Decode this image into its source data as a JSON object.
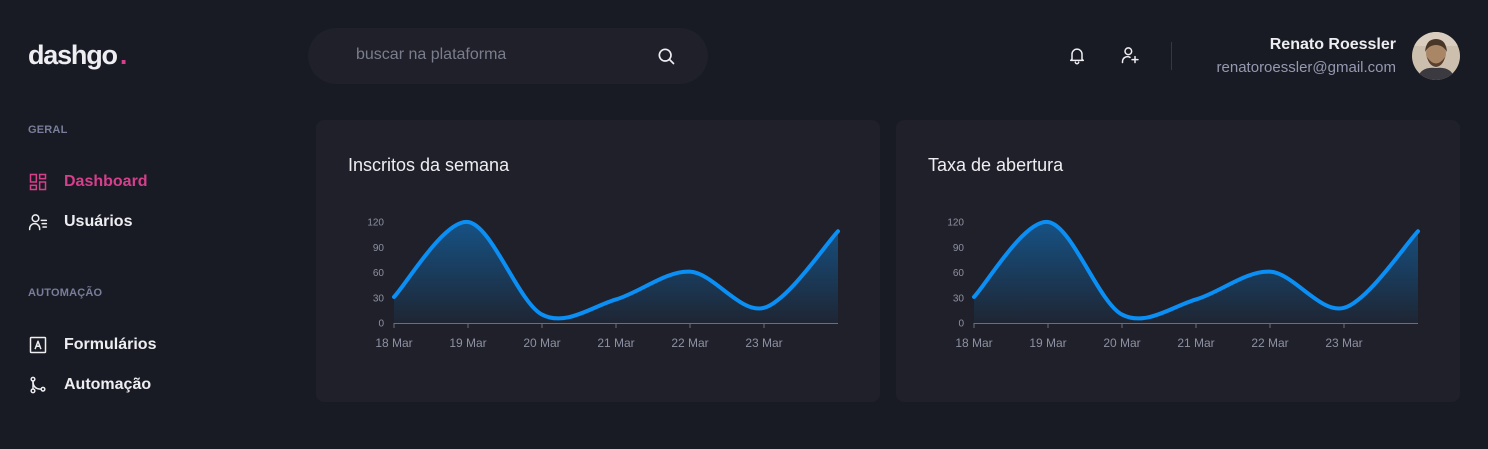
{
  "logo": {
    "text": "dashgo",
    "dot": "."
  },
  "search": {
    "placeholder": "buscar na plataforma",
    "icon": "search-icon"
  },
  "header": {
    "icons": [
      "bell-icon",
      "user-plus-icon"
    ],
    "user": {
      "name": "Renato Roessler",
      "email": "renatoroessler@gmail.com"
    }
  },
  "sidebar": {
    "sections": [
      {
        "title": "GERAL",
        "items": [
          {
            "label": "Dashboard",
            "icon": "dashboard-icon",
            "active": true
          },
          {
            "label": "Usuários",
            "icon": "users-icon",
            "active": false
          }
        ]
      },
      {
        "title": "AUTOMAÇÃO",
        "items": [
          {
            "label": "Formulários",
            "icon": "form-icon",
            "active": false
          },
          {
            "label": "Automação",
            "icon": "git-merge-icon",
            "active": false
          }
        ]
      }
    ]
  },
  "colors": {
    "background": "#181b23",
    "card": "#1f2029",
    "accent": "#d53f8c",
    "series": "#0b8ff5",
    "muted": "#9699b0"
  },
  "cards": [
    {
      "title": "Inscritos da semana"
    },
    {
      "title": "Taxa de abertura"
    }
  ],
  "chart_data": [
    {
      "type": "area",
      "title": "Inscritos da semana",
      "x": [
        "2021-03-18",
        "2021-03-19",
        "2021-03-20",
        "2021-03-21",
        "2021-03-22",
        "2021-03-23",
        "2021-03-24"
      ],
      "x_tick_labels": [
        "18 Mar",
        "19 Mar",
        "20 Mar",
        "21 Mar",
        "22 Mar",
        "23 Mar"
      ],
      "y_ticks": [
        0,
        30,
        60,
        90,
        120
      ],
      "ylim": [
        0,
        120
      ],
      "series": [
        {
          "values": [
            31,
            120,
            10,
            28,
            61,
            18,
            109
          ]
        }
      ],
      "grid": false,
      "legend": false
    },
    {
      "type": "area",
      "title": "Taxa de abertura",
      "x": [
        "2021-03-18",
        "2021-03-19",
        "2021-03-20",
        "2021-03-21",
        "2021-03-22",
        "2021-03-23",
        "2021-03-24"
      ],
      "x_tick_labels": [
        "18 Mar",
        "19 Mar",
        "20 Mar",
        "21 Mar",
        "22 Mar",
        "23 Mar"
      ],
      "y_ticks": [
        0,
        30,
        60,
        90,
        120
      ],
      "ylim": [
        0,
        120
      ],
      "series": [
        {
          "values": [
            31,
            120,
            10,
            28,
            61,
            18,
            109
          ]
        }
      ],
      "grid": false,
      "legend": false
    }
  ]
}
